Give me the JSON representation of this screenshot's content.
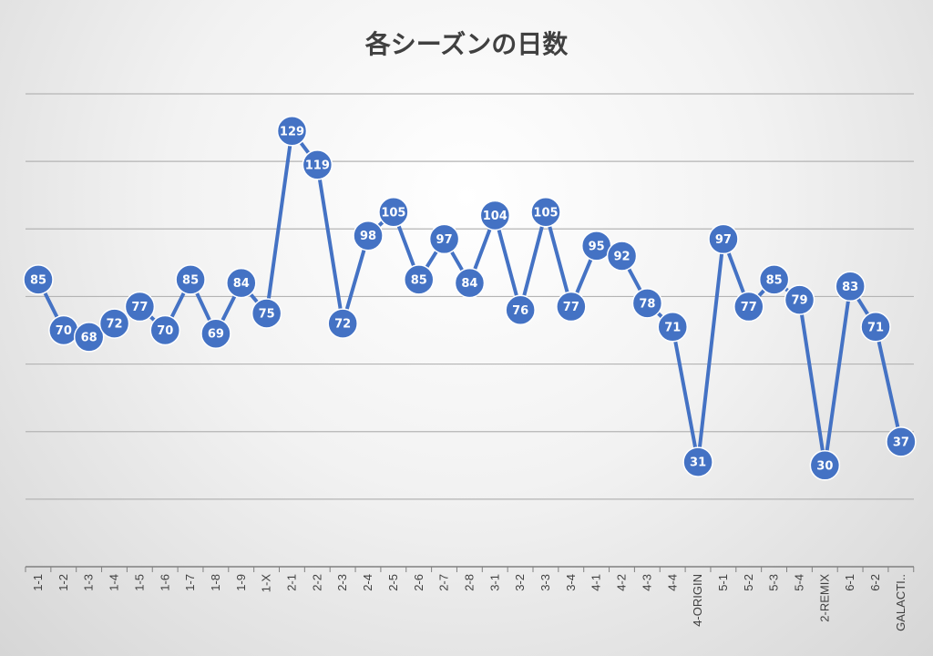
{
  "chart_data": {
    "type": "line",
    "title": "各シーズンの日数",
    "xlabel": "",
    "ylabel": "",
    "ylim": [
      0,
      140
    ],
    "grid": true,
    "legend": "none",
    "categories": [
      "1-1",
      "1-2",
      "1-3",
      "1-4",
      "1-5",
      "1-6",
      "1-7",
      "1-8",
      "1-9",
      "1-X",
      "2-1",
      "2-2",
      "2-3",
      "2-4",
      "2-5",
      "2-6",
      "2-7",
      "2-8",
      "3-1",
      "3-2",
      "3-3",
      "3-4",
      "4-1",
      "4-2",
      "4-3",
      "4-4",
      "4-ORIGIN",
      "5-1",
      "5-2",
      "5-3",
      "5-4",
      "2-REMIX",
      "6-1",
      "6-2",
      "GALACTI.."
    ],
    "series": [
      {
        "values": [
          85,
          70,
          68,
          72,
          77,
          70,
          85,
          69,
          84,
          75,
          129,
          119,
          72,
          98,
          105,
          85,
          97,
          84,
          104,
          76,
          105,
          77,
          95,
          92,
          78,
          71,
          31,
          97,
          77,
          85,
          79,
          30,
          83,
          71,
          37
        ],
        "color": "#4472C4"
      }
    ]
  }
}
